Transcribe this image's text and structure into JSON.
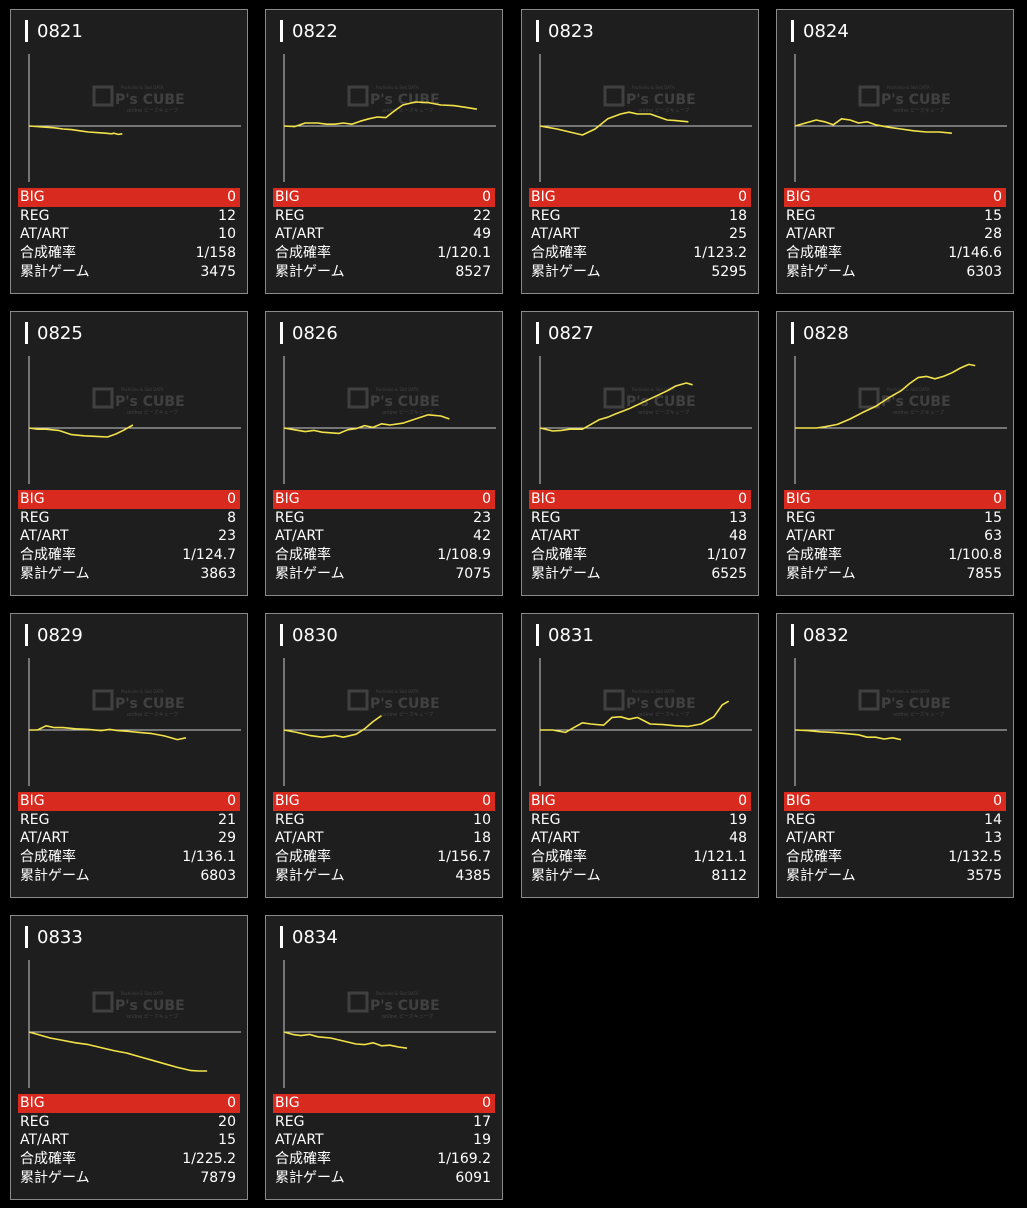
{
  "labels": {
    "big": "BIG",
    "reg": "REG",
    "at": "AT/ART",
    "rate": "合成確率",
    "games": "累計ゲーム"
  },
  "watermark": {
    "brand": "P's CUBE",
    "tagline": "Pachinko & Slot DATA",
    "sub": "online ピーズキューブ"
  },
  "colors": {
    "line": "#f2e24a",
    "big_bar": "#d82a1e",
    "card_bg": "#1e1e1e",
    "axis": "#cccccc"
  },
  "machines": [
    {
      "id": "0821",
      "big": "0",
      "reg": "12",
      "at": "10",
      "rate": "1/158",
      "games": "3475"
    },
    {
      "id": "0822",
      "big": "0",
      "reg": "22",
      "at": "49",
      "rate": "1/120.1",
      "games": "8527"
    },
    {
      "id": "0823",
      "big": "0",
      "reg": "18",
      "at": "25",
      "rate": "1/123.2",
      "games": "5295"
    },
    {
      "id": "0824",
      "big": "0",
      "reg": "15",
      "at": "28",
      "rate": "1/146.6",
      "games": "6303"
    },
    {
      "id": "0825",
      "big": "0",
      "reg": "8",
      "at": "23",
      "rate": "1/124.7",
      "games": "3863"
    },
    {
      "id": "0826",
      "big": "0",
      "reg": "23",
      "at": "42",
      "rate": "1/108.9",
      "games": "7075"
    },
    {
      "id": "0827",
      "big": "0",
      "reg": "13",
      "at": "48",
      "rate": "1/107",
      "games": "6525"
    },
    {
      "id": "0828",
      "big": "0",
      "reg": "15",
      "at": "63",
      "rate": "1/100.8",
      "games": "7855"
    },
    {
      "id": "0829",
      "big": "0",
      "reg": "21",
      "at": "29",
      "rate": "1/136.1",
      "games": "6803"
    },
    {
      "id": "0830",
      "big": "0",
      "reg": "10",
      "at": "18",
      "rate": "1/156.7",
      "games": "4385"
    },
    {
      "id": "0831",
      "big": "0",
      "reg": "19",
      "at": "48",
      "rate": "1/121.1",
      "games": "8112"
    },
    {
      "id": "0832",
      "big": "0",
      "reg": "14",
      "at": "13",
      "rate": "1/132.5",
      "games": "3575"
    },
    {
      "id": "0833",
      "big": "0",
      "reg": "20",
      "at": "15",
      "rate": "1/225.2",
      "games": "7879"
    },
    {
      "id": "0834",
      "big": "0",
      "reg": "17",
      "at": "19",
      "rate": "1/169.2",
      "games": "6091"
    }
  ],
  "chart_data": [
    {
      "type": "line",
      "title": "0821",
      "ylim": [
        -1,
        1
      ],
      "x": [
        0,
        0.04,
        0.08,
        0.12,
        0.16,
        0.2,
        0.24,
        0.28,
        0.32,
        0.36,
        0.39,
        0.4,
        0.42,
        0.44
      ],
      "y": [
        0,
        -0.01,
        -0.02,
        -0.03,
        -0.05,
        -0.06,
        -0.08,
        -0.1,
        -0.11,
        -0.12,
        -0.13,
        -0.12,
        -0.14,
        -0.13
      ]
    },
    {
      "type": "line",
      "title": "0822",
      "ylim": [
        -1,
        1
      ],
      "x": [
        0,
        0.05,
        0.1,
        0.16,
        0.2,
        0.24,
        0.28,
        0.32,
        0.36,
        0.4,
        0.44,
        0.48,
        0.52,
        0.56,
        0.62,
        0.68,
        0.74,
        0.8,
        0.86,
        0.91
      ],
      "y": [
        0,
        -0.01,
        0.05,
        0.05,
        0.03,
        0.03,
        0.05,
        0.03,
        0.08,
        0.12,
        0.15,
        0.14,
        0.25,
        0.35,
        0.4,
        0.39,
        0.35,
        0.34,
        0.31,
        0.28
      ]
    },
    {
      "type": "line",
      "title": "0823",
      "ylim": [
        -1,
        1
      ],
      "x": [
        0,
        0.08,
        0.14,
        0.2,
        0.26,
        0.32,
        0.38,
        0.42,
        0.46,
        0.52,
        0.56,
        0.6,
        0.64,
        0.7
      ],
      "y": [
        0,
        -0.05,
        -0.1,
        -0.15,
        -0.05,
        0.12,
        0.2,
        0.23,
        0.2,
        0.2,
        0.15,
        0.1,
        0.09,
        0.07
      ]
    },
    {
      "type": "line",
      "title": "0824",
      "ylim": [
        -1,
        1
      ],
      "x": [
        0,
        0.05,
        0.1,
        0.14,
        0.18,
        0.22,
        0.26,
        0.3,
        0.34,
        0.38,
        0.44,
        0.5,
        0.56,
        0.62,
        0.68,
        0.74
      ],
      "y": [
        0,
        0.05,
        0.1,
        0.07,
        0.02,
        0.12,
        0.1,
        0.05,
        0.07,
        0.02,
        -0.02,
        -0.05,
        -0.08,
        -0.1,
        -0.1,
        -0.12
      ]
    },
    {
      "type": "line",
      "title": "0825",
      "ylim": [
        -1,
        1
      ],
      "x": [
        0,
        0.04,
        0.08,
        0.14,
        0.2,
        0.26,
        0.32,
        0.37,
        0.41,
        0.45,
        0.49
      ],
      "y": [
        0,
        -0.02,
        -0.02,
        -0.04,
        -0.11,
        -0.13,
        -0.14,
        -0.15,
        -0.1,
        -0.03,
        0.05
      ]
    },
    {
      "type": "line",
      "title": "0826",
      "ylim": [
        -1,
        1
      ],
      "x": [
        0,
        0.05,
        0.1,
        0.14,
        0.18,
        0.22,
        0.26,
        0.3,
        0.34,
        0.38,
        0.42,
        0.46,
        0.5,
        0.56,
        0.62,
        0.68,
        0.74,
        0.78
      ],
      "y": [
        0,
        -0.03,
        -0.06,
        -0.04,
        -0.07,
        -0.08,
        -0.09,
        -0.03,
        -0.01,
        0.04,
        0.01,
        0.07,
        0.05,
        0.08,
        0.15,
        0.22,
        0.2,
        0.15
      ]
    },
    {
      "type": "line",
      "title": "0827",
      "ylim": [
        -1,
        1
      ],
      "x": [
        0,
        0.06,
        0.1,
        0.14,
        0.2,
        0.24,
        0.28,
        0.32,
        0.36,
        0.42,
        0.48,
        0.54,
        0.6,
        0.64,
        0.69,
        0.72
      ],
      "y": [
        0,
        -0.05,
        -0.04,
        -0.02,
        -0.02,
        0.06,
        0.14,
        0.18,
        0.24,
        0.32,
        0.42,
        0.52,
        0.62,
        0.7,
        0.75,
        0.72
      ]
    },
    {
      "type": "line",
      "title": "0828",
      "ylim": [
        -1,
        1
      ],
      "x": [
        0,
        0.06,
        0.1,
        0.14,
        0.2,
        0.26,
        0.32,
        0.38,
        0.44,
        0.5,
        0.54,
        0.58,
        0.62,
        0.66,
        0.7,
        0.74,
        0.78,
        0.82,
        0.85
      ],
      "y": [
        0,
        0,
        0,
        0.02,
        0.06,
        0.15,
        0.26,
        0.36,
        0.5,
        0.62,
        0.74,
        0.84,
        0.86,
        0.82,
        0.86,
        0.92,
        1.0,
        1.06,
        1.04
      ]
    },
    {
      "type": "line",
      "title": "0829",
      "ylim": [
        -1,
        1
      ],
      "x": [
        0,
        0.04,
        0.08,
        0.12,
        0.16,
        0.22,
        0.28,
        0.34,
        0.38,
        0.42,
        0.46,
        0.52,
        0.58,
        0.64,
        0.7,
        0.74
      ],
      "y": [
        0,
        0,
        0.07,
        0.04,
        0.04,
        0.02,
        0.01,
        -0.01,
        0.01,
        -0.01,
        -0.02,
        -0.04,
        -0.06,
        -0.1,
        -0.16,
        -0.13
      ]
    },
    {
      "type": "line",
      "title": "0830",
      "ylim": [
        -1,
        1
      ],
      "x": [
        0,
        0.06,
        0.12,
        0.18,
        0.24,
        0.28,
        0.34,
        0.38,
        0.42,
        0.46
      ],
      "y": [
        0,
        -0.04,
        -0.09,
        -0.12,
        -0.09,
        -0.12,
        -0.07,
        0.02,
        0.14,
        0.24
      ]
    },
    {
      "type": "line",
      "title": "0831",
      "ylim": [
        -1,
        1
      ],
      "x": [
        0,
        0.06,
        0.12,
        0.16,
        0.2,
        0.24,
        0.3,
        0.34,
        0.38,
        0.42,
        0.46,
        0.52,
        0.58,
        0.64,
        0.7,
        0.76,
        0.82,
        0.86,
        0.89
      ],
      "y": [
        0,
        0,
        -0.04,
        0.04,
        0.12,
        0.1,
        0.08,
        0.21,
        0.22,
        0.18,
        0.21,
        0.1,
        0.09,
        0.07,
        0.06,
        0.1,
        0.22,
        0.42,
        0.48
      ]
    },
    {
      "type": "line",
      "title": "0832",
      "ylim": [
        -1,
        1
      ],
      "x": [
        0,
        0.06,
        0.12,
        0.18,
        0.24,
        0.3,
        0.34,
        0.38,
        0.42,
        0.46,
        0.5
      ],
      "y": [
        0,
        -0.01,
        -0.03,
        -0.04,
        -0.06,
        -0.08,
        -0.12,
        -0.12,
        -0.15,
        -0.13,
        -0.16
      ]
    },
    {
      "type": "line",
      "title": "0833",
      "ylim": [
        -1,
        1
      ],
      "x": [
        0,
        0.04,
        0.1,
        0.16,
        0.22,
        0.28,
        0.34,
        0.4,
        0.46,
        0.52,
        0.58,
        0.64,
        0.7,
        0.76,
        0.8,
        0.84
      ],
      "y": [
        0,
        -0.04,
        -0.1,
        -0.14,
        -0.18,
        -0.21,
        -0.26,
        -0.31,
        -0.35,
        -0.41,
        -0.47,
        -0.53,
        -0.59,
        -0.64,
        -0.65,
        -0.65
      ]
    },
    {
      "type": "line",
      "title": "0834",
      "ylim": [
        -1,
        1
      ],
      "x": [
        0,
        0.04,
        0.08,
        0.12,
        0.16,
        0.22,
        0.28,
        0.34,
        0.38,
        0.42,
        0.46,
        0.5,
        0.54,
        0.58
      ],
      "y": [
        0,
        -0.04,
        -0.06,
        -0.04,
        -0.08,
        -0.1,
        -0.15,
        -0.2,
        -0.21,
        -0.18,
        -0.23,
        -0.22,
        -0.25,
        -0.27
      ]
    }
  ]
}
